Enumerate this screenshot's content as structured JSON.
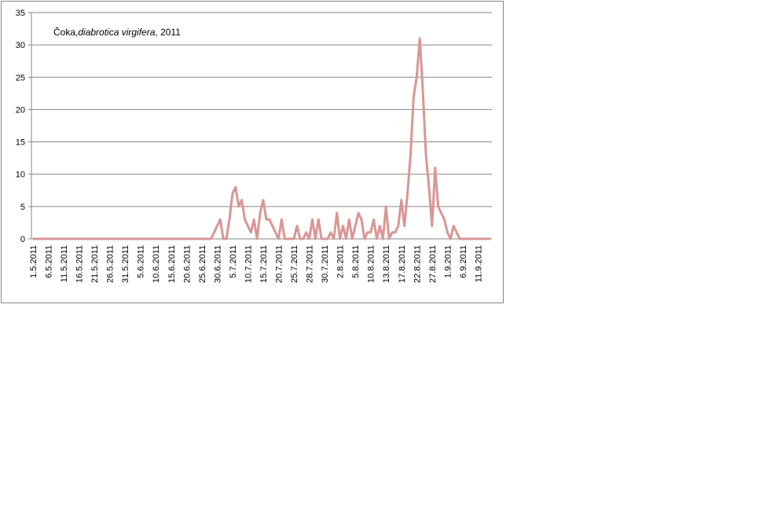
{
  "chart_data": {
    "type": "line",
    "title": [
      "Čoka,",
      "diabrotica virgifera",
      ", 2011"
    ],
    "categories": [
      "1.5.2011",
      null,
      null,
      null,
      null,
      "6.5.2011",
      null,
      null,
      null,
      null,
      "11.5.2011",
      null,
      null,
      null,
      null,
      "16.5.2011",
      null,
      null,
      null,
      null,
      "21.5.2011",
      null,
      null,
      null,
      null,
      "26.5.2011",
      null,
      null,
      null,
      null,
      "31.5.2011",
      null,
      null,
      null,
      null,
      "5.6.2011",
      null,
      null,
      null,
      null,
      "10.6.2011",
      null,
      null,
      null,
      null,
      "15.6.2011",
      null,
      null,
      null,
      null,
      "20.6.2011",
      null,
      null,
      null,
      null,
      "25.6.2011",
      null,
      null,
      null,
      null,
      "30.6.2011",
      null,
      null,
      null,
      null,
      "5.7.2011",
      null,
      null,
      null,
      null,
      "10.7.2011",
      null,
      null,
      null,
      null,
      "15.7.2011",
      null,
      null,
      null,
      null,
      "20.7.2011",
      null,
      null,
      null,
      null,
      "25.7.2011",
      null,
      null,
      null,
      null,
      "28.7.2011",
      null,
      null,
      null,
      null,
      "30.7.2011",
      null,
      null,
      null,
      null,
      "2.8.2011",
      null,
      null,
      null,
      null,
      "5.8.2011",
      null,
      null,
      null,
      null,
      "10.8.2011",
      null,
      null,
      null,
      null,
      "13.8.2011",
      null,
      null,
      null,
      null,
      "17.8.2011",
      null,
      null,
      null,
      null,
      "22.8.2011",
      null,
      null,
      null,
      null,
      "27.8.2011",
      null,
      null,
      null,
      null,
      "1.9.2011",
      null,
      null,
      null,
      null,
      "6.9.2011",
      null,
      null,
      null,
      null,
      "11.9.2011",
      null,
      null,
      null,
      null
    ],
    "values": [
      0,
      0,
      0,
      0,
      0,
      0,
      0,
      0,
      0,
      0,
      0,
      0,
      0,
      0,
      0,
      0,
      0,
      0,
      0,
      0,
      0,
      0,
      0,
      0,
      0,
      0,
      0,
      0,
      0,
      0,
      0,
      0,
      0,
      0,
      0,
      0,
      0,
      0,
      0,
      0,
      0,
      0,
      0,
      0,
      0,
      0,
      0,
      0,
      0,
      0,
      0,
      0,
      0,
      0,
      0,
      0,
      0,
      0,
      0,
      1,
      2,
      3,
      0,
      0,
      3,
      7,
      8,
      5,
      6,
      3,
      2,
      1,
      3,
      0,
      4,
      6,
      3,
      3,
      2,
      1,
      0,
      3,
      0,
      0,
      0,
      0,
      2,
      0,
      0,
      1,
      0,
      3,
      0,
      3,
      0,
      0,
      0,
      1,
      0,
      4,
      0,
      2,
      0,
      3,
      0,
      2,
      4,
      3,
      0,
      1,
      1,
      3,
      0,
      2,
      0,
      5,
      0,
      1,
      1,
      2,
      6,
      2,
      7,
      13,
      22,
      25,
      31,
      23,
      13,
      8,
      2,
      11,
      5,
      4,
      3,
      1,
      0,
      2,
      1,
      0,
      0,
      0,
      0,
      0,
      0,
      0,
      0,
      0,
      0,
      0
    ],
    "color": "#d99694",
    "ylim": [
      0,
      35
    ],
    "yticks": [
      0,
      5,
      10,
      15,
      20,
      25,
      30,
      35
    ],
    "grid": true
  }
}
